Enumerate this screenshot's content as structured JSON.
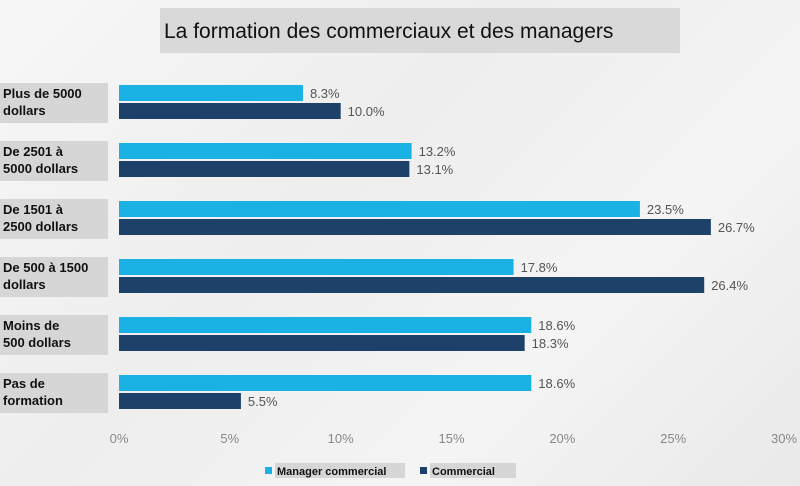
{
  "chart_data": {
    "type": "bar",
    "orientation": "horizontal",
    "title": "La formation des commerciaux et des managers",
    "categories": [
      [
        "Plus de 5000",
        "dollars"
      ],
      [
        "De 2501 à",
        "5000 dollars"
      ],
      [
        "De 1501 à",
        "2500 dollars"
      ],
      [
        "De 500 à 1500",
        "dollars"
      ],
      [
        "Moins de",
        "500 dollars"
      ],
      [
        "Pas de",
        "formation"
      ]
    ],
    "series": [
      {
        "name": "Manager commercial",
        "color": "#1ab2e4",
        "values": [
          8.3,
          13.2,
          23.5,
          17.8,
          18.6,
          18.6
        ],
        "labels": [
          "8.3%",
          "13.2%",
          "23.5%",
          "17.8%",
          "18.6%",
          "18.6%"
        ]
      },
      {
        "name": "Commercial",
        "color": "#1d4168",
        "values": [
          10.0,
          13.1,
          26.7,
          26.4,
          18.3,
          5.5
        ],
        "labels": [
          "10.0%",
          "13.1%",
          "26.7%",
          "26.4%",
          "18.3%",
          "5.5%"
        ]
      }
    ],
    "xlim": [
      0,
      30
    ],
    "ticks": [
      0,
      5,
      10,
      15,
      20,
      25,
      30
    ],
    "tick_labels": [
      "0%",
      "5%",
      "10%",
      "15%",
      "20%",
      "25%",
      "30%"
    ],
    "grid": false,
    "legend_position": "bottom"
  }
}
